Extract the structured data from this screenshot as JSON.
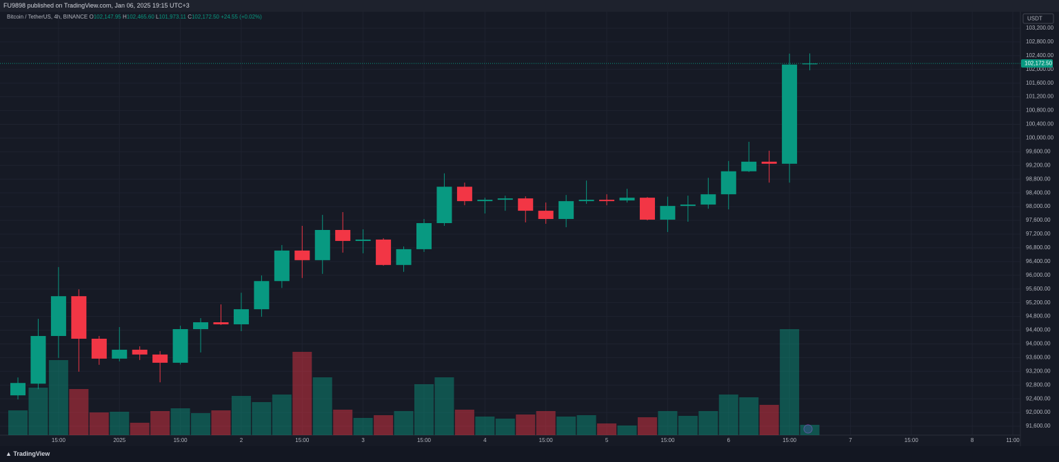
{
  "header": {
    "title": "FU9898 published on TradingView.com, Jan 06, 2025 19:15 UTC+3"
  },
  "legend": {
    "symbol": "Bitcoin / TetherUS, 4h, BINANCE",
    "ohlc": [
      {
        "key": "O",
        "value": "102,147.95"
      },
      {
        "key": "H",
        "value": "102,465.60"
      },
      {
        "key": "L",
        "value": "101,973.11"
      },
      {
        "key": "C",
        "value": "102,172.50"
      }
    ],
    "change": "+24.55 (+0.02%)"
  },
  "footer": {
    "brand": "TradingView"
  },
  "chart_data": {
    "type": "candlestick",
    "currency": "USDT",
    "up_color": "#089981",
    "down_color": "#f23645",
    "open": [
      92500,
      92840,
      94230,
      95390,
      94150,
      93570,
      93830,
      93690,
      93450,
      94430,
      94630,
      94570,
      95010,
      95830,
      96720,
      96440,
      97320,
      97000,
      97040,
      96300,
      96760,
      97520,
      98580,
      98160,
      98200,
      98240,
      97880,
      97640,
      98160,
      98200,
      98180,
      98260,
      97620,
      98020,
      98060,
      98360,
      99030,
      99310,
      99250,
      102147.95
    ],
    "high": [
      93020,
      94730,
      96240,
      95590,
      94230,
      94490,
      93930,
      93790,
      94530,
      94750,
      95150,
      95490,
      95995,
      96880,
      97440,
      97760,
      97840,
      97340,
      97080,
      96840,
      97640,
      98970,
      98700,
      98260,
      98320,
      98300,
      98120,
      98340,
      98760,
      98360,
      98520,
      98280,
      98290,
      98320,
      98840,
      99330,
      99890,
      99630,
      102460,
      102465.6
    ],
    "low": [
      92380,
      92680,
      93590,
      93190,
      93390,
      93490,
      93530,
      92880,
      93400,
      93750,
      94550,
      94370,
      94790,
      95630,
      95920,
      96040,
      96660,
      96640,
      96280,
      96100,
      96680,
      97440,
      98040,
      97800,
      97880,
      97540,
      97500,
      97400,
      98080,
      98040,
      98120,
      97600,
      97260,
      97560,
      97940,
      97920,
      99010,
      98700,
      98700,
      101973.11
    ],
    "close": [
      92860,
      94230,
      95390,
      94150,
      93570,
      93830,
      93690,
      93450,
      94430,
      94630,
      94570,
      95010,
      95830,
      96720,
      96440,
      97320,
      97000,
      97040,
      96300,
      96760,
      97520,
      98580,
      98160,
      98200,
      98240,
      97880,
      97640,
      98160,
      98200,
      98160,
      98260,
      97620,
      98020,
      98060,
      98360,
      99030,
      99310,
      99250,
      102140,
      102172.5
    ],
    "volume": [
      36,
      69,
      109,
      67,
      33,
      34,
      18,
      35,
      39,
      32,
      36,
      57,
      48,
      59,
      121,
      84,
      37,
      25,
      29,
      35,
      74,
      84,
      37,
      27,
      24,
      30,
      35,
      27,
      29,
      17,
      14,
      26,
      35,
      28,
      35,
      59,
      55,
      44,
      154,
      15
    ],
    "volume_ylim": [
      0,
      600
    ],
    "ylim": [
      91340,
      103380
    ],
    "yticks": [
      {
        "value": 91600,
        "label": "91,600.00"
      },
      {
        "value": 92000,
        "label": "92,000.00"
      },
      {
        "value": 92400,
        "label": "92,400.00"
      },
      {
        "value": 92800,
        "label": "92,800.00"
      },
      {
        "value": 93200,
        "label": "93,200.00"
      },
      {
        "value": 93600,
        "label": "93,600.00"
      },
      {
        "value": 94000,
        "label": "94,000.00"
      },
      {
        "value": 94400,
        "label": "94,400.00"
      },
      {
        "value": 94800,
        "label": "94,800.00"
      },
      {
        "value": 95200,
        "label": "95,200.00"
      },
      {
        "value": 95600,
        "label": "95,600.00"
      },
      {
        "value": 96000,
        "label": "96,000.00"
      },
      {
        "value": 96400,
        "label": "96,400.00"
      },
      {
        "value": 96800,
        "label": "96,800.00"
      },
      {
        "value": 97200,
        "label": "97,200.00"
      },
      {
        "value": 97600,
        "label": "97,600.00"
      },
      {
        "value": 98000,
        "label": "98,000.00"
      },
      {
        "value": 98400,
        "label": "98,400.00"
      },
      {
        "value": 98800,
        "label": "98,800.00"
      },
      {
        "value": 99200,
        "label": "99,200.00"
      },
      {
        "value": 99600,
        "label": "99,600.00"
      },
      {
        "value": 100000,
        "label": "100,000.00"
      },
      {
        "value": 100400,
        "label": "100,400.00"
      },
      {
        "value": 100800,
        "label": "100,800.00"
      },
      {
        "value": 101200,
        "label": "101,200.00"
      },
      {
        "value": 101600,
        "label": "101,600.00"
      },
      {
        "value": 102000,
        "label": "102,000.00"
      },
      {
        "value": 102400,
        "label": "102,400.00"
      },
      {
        "value": 102800,
        "label": "102,800.00"
      },
      {
        "value": 103200,
        "label": "103,200.00"
      }
    ],
    "xticks": [
      {
        "value": 2,
        "label": "15:00"
      },
      {
        "value": 5,
        "label": "2025"
      },
      {
        "value": 8,
        "label": "15:00"
      },
      {
        "value": 11,
        "label": "2"
      },
      {
        "value": 14,
        "label": "15:00"
      },
      {
        "value": 17,
        "label": "3"
      },
      {
        "value": 20,
        "label": "15:00"
      },
      {
        "value": 23,
        "label": "4"
      },
      {
        "value": 26,
        "label": "15:00"
      },
      {
        "value": 29,
        "label": "5"
      },
      {
        "value": 32,
        "label": "15:00"
      },
      {
        "value": 35,
        "label": "6"
      },
      {
        "value": 38,
        "label": "15:00"
      },
      {
        "value": 41,
        "label": "7"
      },
      {
        "value": 44,
        "label": "15:00"
      },
      {
        "value": 47,
        "label": "8"
      },
      {
        "value": 49,
        "label": "11:00"
      }
    ],
    "last_price": {
      "value": 102172.5,
      "label": "102,172.50"
    },
    "grid": true
  }
}
